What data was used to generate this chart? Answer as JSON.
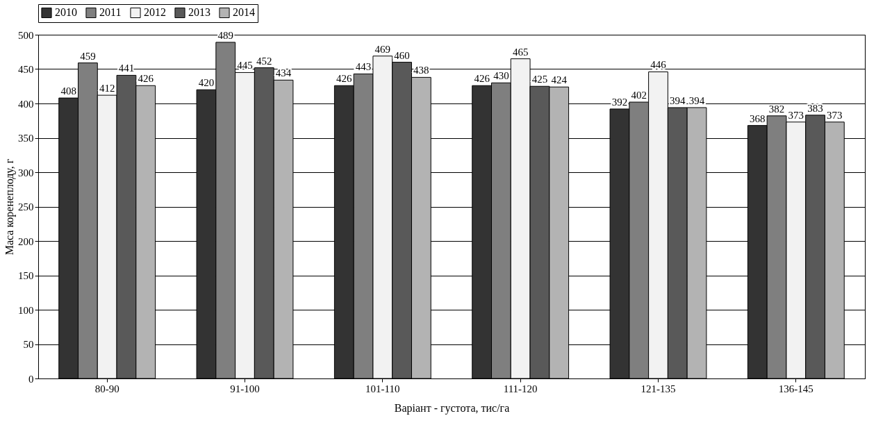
{
  "chart_data": {
    "type": "bar",
    "xlabel": "Варіант - густота, тис/га",
    "ylabel": "Маса коренеплоду, г",
    "categories": [
      "80-90",
      "91-100",
      "101-110",
      "111-120",
      "121-135",
      "136-145"
    ],
    "series": [
      {
        "name": "2010",
        "color": "#333333",
        "values": [
          408,
          420,
          426,
          426,
          392,
          368
        ]
      },
      {
        "name": "2011",
        "color": "#7f7f7f",
        "values": [
          459,
          489,
          443,
          430,
          402,
          382
        ]
      },
      {
        "name": "2012",
        "color": "#f2f2f2",
        "values": [
          412,
          445,
          469,
          465,
          446,
          373
        ]
      },
      {
        "name": "2013",
        "color": "#595959",
        "values": [
          441,
          452,
          460,
          425,
          394,
          383
        ]
      },
      {
        "name": "2014",
        "color": "#b3b3b3",
        "values": [
          426,
          434,
          438,
          424,
          394,
          373
        ]
      }
    ],
    "ylim": [
      0,
      500
    ],
    "yticks": [
      0,
      50,
      100,
      150,
      200,
      250,
      300,
      350,
      400,
      450,
      500
    ],
    "grid": "y",
    "legend": "top",
    "data_labels": true
  }
}
